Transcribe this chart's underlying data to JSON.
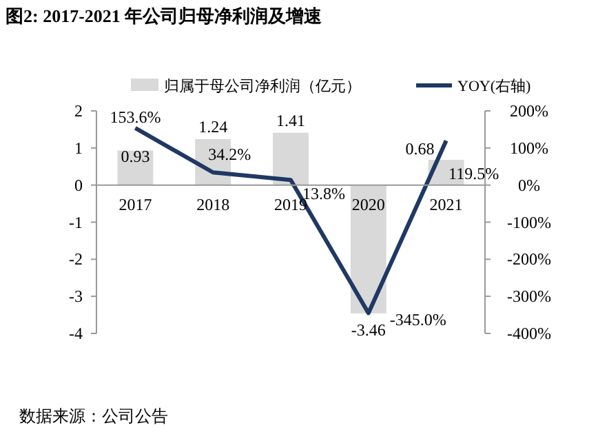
{
  "chart_data": {
    "type": "bar",
    "title": "图2: 2017-2021 年公司归母净利润及增速",
    "categories": [
      "2017",
      "2018",
      "2019",
      "2020",
      "2021"
    ],
    "series": [
      {
        "name": "归属于母公司净利润（亿元）",
        "type": "bar",
        "color": "#d9d9d9",
        "values": [
          0.93,
          1.24,
          1.41,
          -3.46,
          0.68
        ],
        "value_labels": [
          "0.93",
          "1.24",
          "1.41",
          "-3.46",
          "0.68"
        ]
      },
      {
        "name": "YOY(右轴)",
        "type": "line",
        "axis": "y2",
        "color": "#1f3864",
        "values": [
          153.6,
          34.2,
          13.8,
          -345.0,
          119.5
        ],
        "value_labels": [
          "153.6%",
          "34.2%",
          "13.8%",
          "-345.0%",
          "119.5%"
        ]
      }
    ],
    "ylim": [
      -4,
      2
    ],
    "yticks": [
      -4,
      -3,
      -2,
      -1,
      0,
      1,
      2
    ],
    "y2lim": [
      -400,
      200
    ],
    "y2ticks": [
      {
        "value": -400,
        "label": "-400%"
      },
      {
        "value": -300,
        "label": "-300%"
      },
      {
        "value": -200,
        "label": "-200%"
      },
      {
        "value": -100,
        "label": "-100%"
      },
      {
        "value": 0,
        "label": "0%"
      },
      {
        "value": 100,
        "label": "100%"
      },
      {
        "value": 200,
        "label": "200%"
      }
    ],
    "legend": "top",
    "grid": false,
    "marker": "none",
    "line_style": "solid",
    "annotations": [
      "数据来源：公司公告"
    ]
  }
}
